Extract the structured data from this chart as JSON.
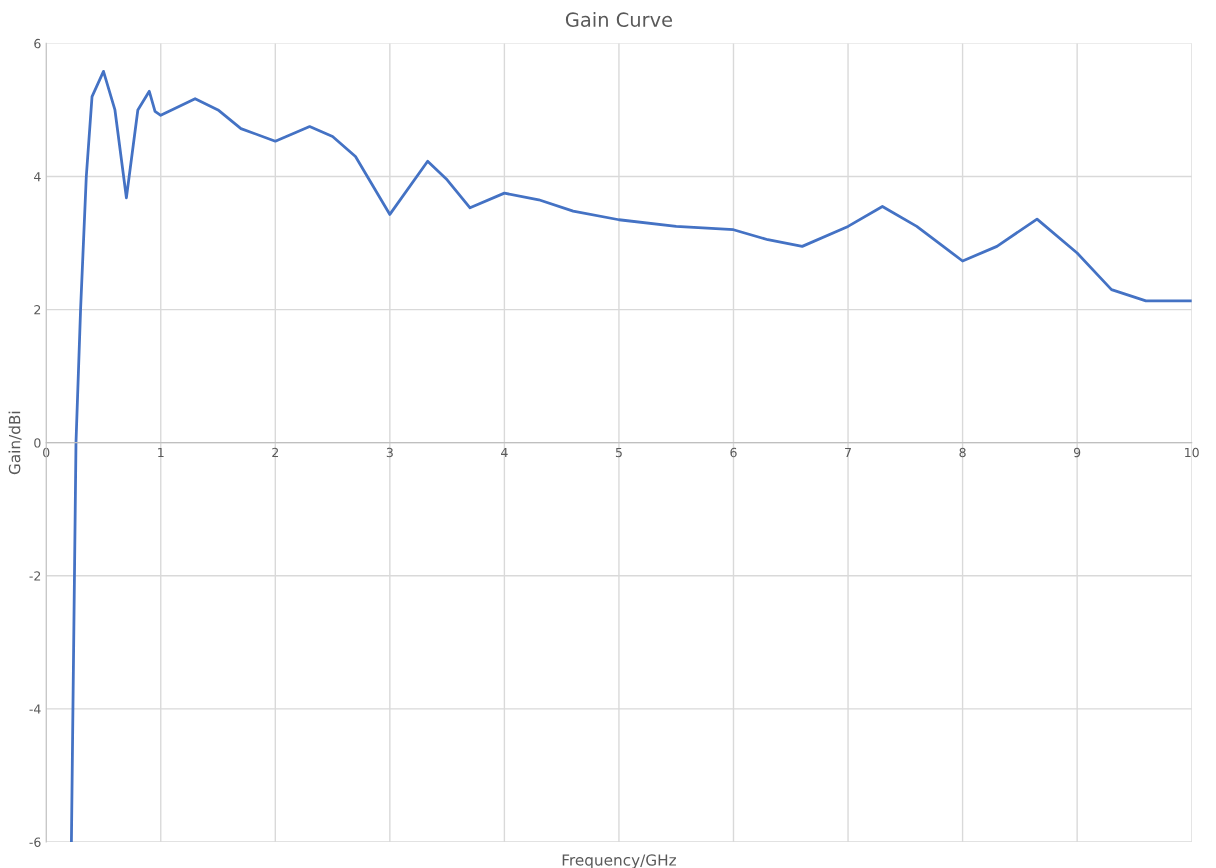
{
  "chart_data": {
    "type": "line",
    "title": "Gain Curve",
    "xlabel": "Frequency/GHz",
    "ylabel": "Gain/dBi",
    "series": [
      {
        "color": "#4472c4",
        "x": [
          0.22,
          0.26,
          0.3,
          0.35,
          0.4,
          0.5,
          0.6,
          0.7,
          0.8,
          0.9,
          0.95,
          1.0,
          1.3,
          1.5,
          1.7,
          2.0,
          2.3,
          2.5,
          2.7,
          3.0,
          3.33,
          3.5,
          3.7,
          4.0,
          4.3,
          4.6,
          5.0,
          5.5,
          6.0,
          6.3,
          6.6,
          7.0,
          7.3,
          7.6,
          8.0,
          8.3,
          8.65,
          9.0,
          9.3,
          9.6,
          10.0
        ],
        "values": [
          -6,
          0,
          2.0,
          4.0,
          5.2,
          5.58,
          5.0,
          3.68,
          5.0,
          5.28,
          4.98,
          4.92,
          5.17,
          5.0,
          4.72,
          4.53,
          4.75,
          4.6,
          4.3,
          3.43,
          4.23,
          3.95,
          3.53,
          3.75,
          3.65,
          3.48,
          3.35,
          3.25,
          3.2,
          3.05,
          2.95,
          3.25,
          3.55,
          3.25,
          2.73,
          2.95,
          3.36,
          2.85,
          2.3,
          2.13,
          2.13
        ]
      }
    ],
    "xlim": [
      0,
      10
    ],
    "xticks": [
      0,
      1,
      2,
      3,
      4,
      5,
      6,
      7,
      8,
      9,
      10
    ],
    "ylim": [
      -6,
      6
    ],
    "yticks": [
      -6,
      -4,
      -2,
      0,
      2,
      4,
      6
    ],
    "grid": true,
    "marker": "none",
    "line_style": "solid"
  }
}
